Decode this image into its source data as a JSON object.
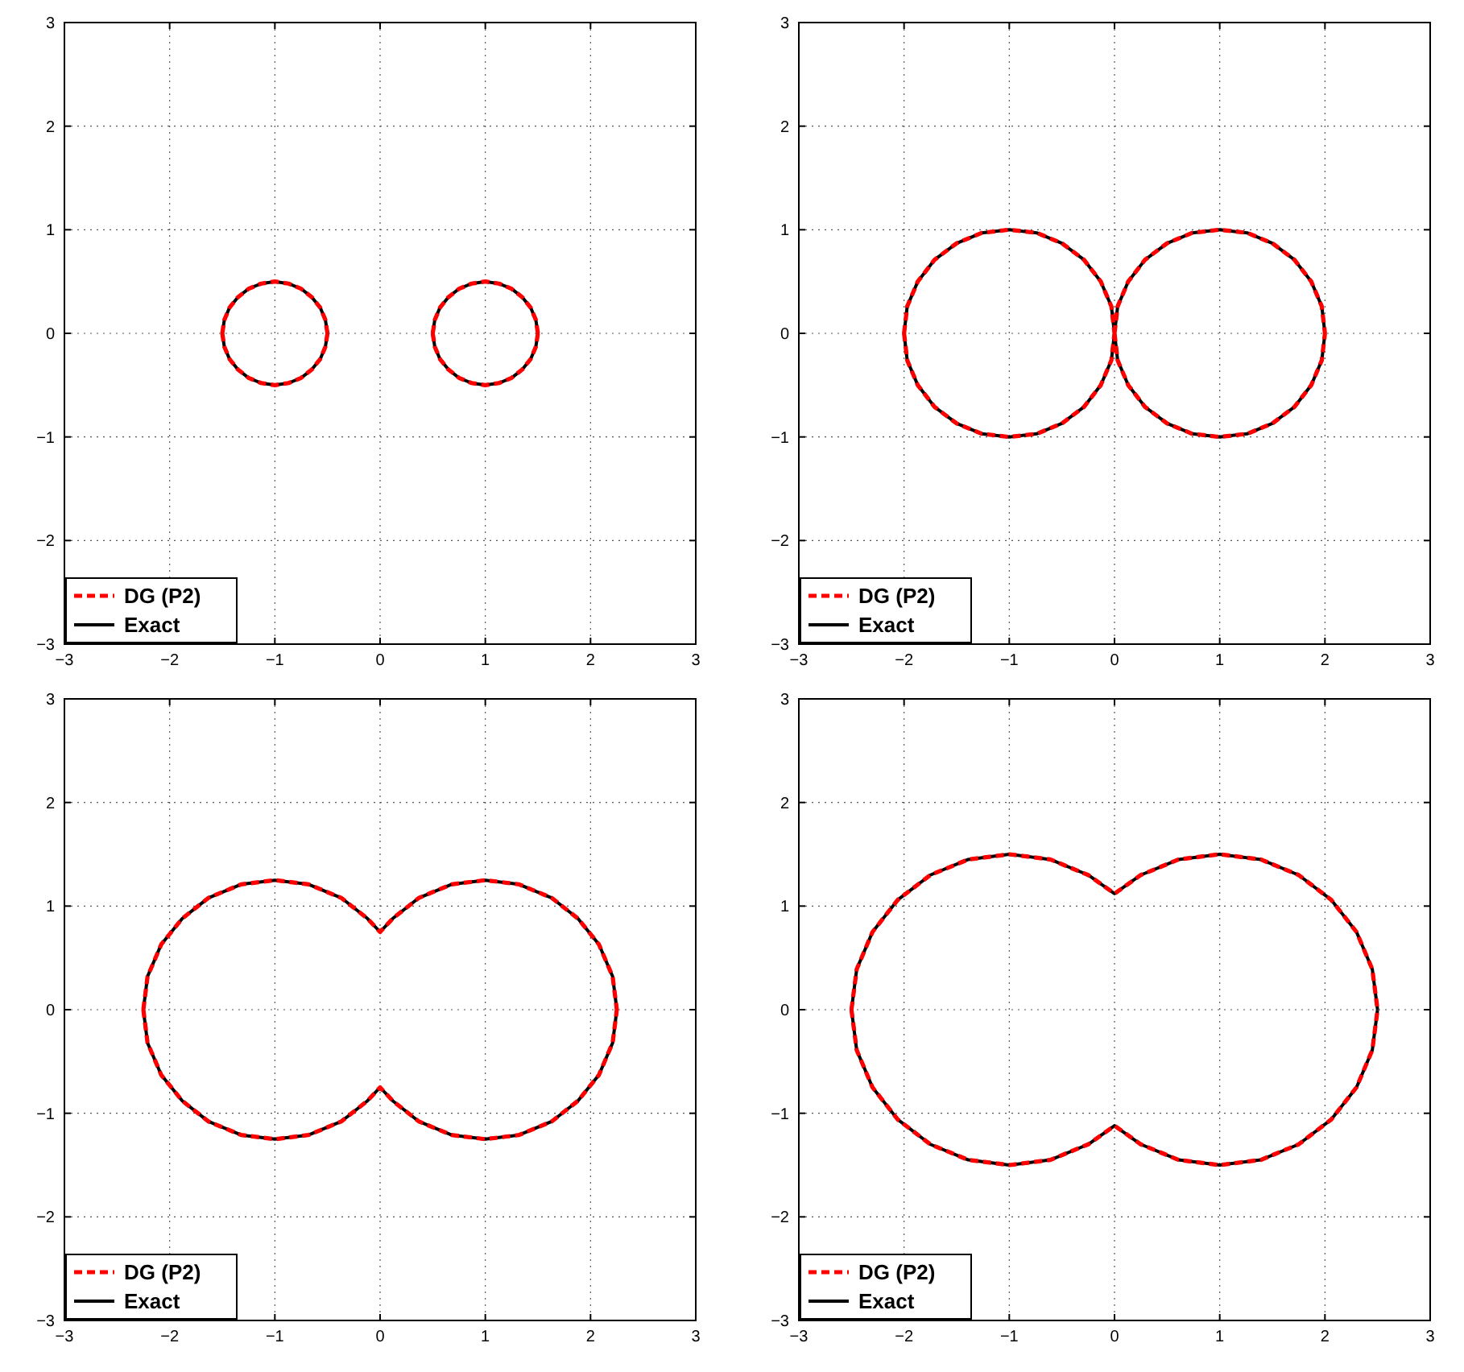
{
  "chart_data": [
    {
      "type": "line",
      "x": [
        -1.5,
        -1.48,
        -1.43,
        -1.35,
        -1.25,
        -1.13,
        -1,
        -0.87,
        -0.75,
        -0.65,
        -0.57,
        -0.52,
        -0.5,
        null,
        -1.5,
        -1.48,
        -1.43,
        -1.35,
        -1.25,
        -1.13,
        -1,
        -0.87,
        -0.75,
        -0.65,
        -0.57,
        -0.52,
        -0.5,
        null,
        0.5,
        0.52,
        0.57,
        0.65,
        0.75,
        0.87,
        1,
        1.13,
        1.25,
        1.35,
        1.43,
        1.48,
        1.5,
        null,
        0.5,
        0.52,
        0.57,
        0.65,
        0.75,
        0.87,
        1,
        1.13,
        1.25,
        1.35,
        1.43,
        1.48,
        1.5
      ],
      "series": [
        {
          "name": "DG (P2)",
          "color": "#ff0000",
          "line_style": "dashed",
          "values": [
            0,
            0.13,
            0.25,
            0.35,
            0.43,
            0.48,
            0.5,
            0.48,
            0.43,
            0.35,
            0.25,
            0.13,
            0,
            null,
            0,
            -0.13,
            -0.25,
            -0.35,
            -0.43,
            -0.48,
            -0.5,
            -0.48,
            -0.43,
            -0.35,
            -0.25,
            -0.13,
            0,
            null,
            0,
            0.13,
            0.25,
            0.35,
            0.43,
            0.48,
            0.5,
            0.48,
            0.43,
            0.35,
            0.25,
            0.13,
            0,
            null,
            0,
            -0.13,
            -0.25,
            -0.35,
            -0.43,
            -0.48,
            -0.5,
            -0.48,
            -0.43,
            -0.35,
            -0.25,
            -0.13,
            0
          ]
        },
        {
          "name": "Exact",
          "color": "#000000",
          "line_style": "solid",
          "values": [
            0,
            0.13,
            0.25,
            0.35,
            0.43,
            0.48,
            0.5,
            0.48,
            0.43,
            0.35,
            0.25,
            0.13,
            0,
            null,
            0,
            -0.13,
            -0.25,
            -0.35,
            -0.43,
            -0.48,
            -0.5,
            -0.48,
            -0.43,
            -0.35,
            -0.25,
            -0.13,
            0,
            null,
            0,
            0.13,
            0.25,
            0.35,
            0.43,
            0.48,
            0.5,
            0.48,
            0.43,
            0.35,
            0.25,
            0.13,
            0,
            null,
            0,
            -0.13,
            -0.25,
            -0.35,
            -0.43,
            -0.48,
            -0.5,
            -0.48,
            -0.43,
            -0.35,
            -0.25,
            -0.13,
            0
          ]
        }
      ],
      "xlim": [
        -3,
        3
      ],
      "ylim": [
        -3,
        3
      ],
      "xticks": [
        {
          "value": -3,
          "label": "−3"
        },
        {
          "value": -2,
          "label": "−2"
        },
        {
          "value": -1,
          "label": "−1"
        },
        0,
        1,
        2,
        3
      ],
      "yticks": [
        {
          "value": -3,
          "label": "−3"
        },
        {
          "value": -2,
          "label": "−2"
        },
        {
          "value": -1,
          "label": "−1"
        },
        0,
        1,
        2,
        3
      ],
      "grid": true,
      "legend": "bottom left"
    },
    {
      "type": "line",
      "x": [
        -2,
        -1.97,
        -1.87,
        -1.71,
        -1.5,
        -1.26,
        -1,
        -0.74,
        -0.5,
        -0.29,
        -0.13,
        -0.03,
        0,
        null,
        -2,
        -1.97,
        -1.87,
        -1.71,
        -1.5,
        -1.26,
        -1,
        -0.74,
        -0.5,
        -0.29,
        -0.13,
        -0.03,
        0,
        null,
        0,
        0.03,
        0.13,
        0.29,
        0.5,
        0.74,
        1,
        1.26,
        1.5,
        1.71,
        1.87,
        1.97,
        2,
        null,
        0,
        0.03,
        0.13,
        0.29,
        0.5,
        0.74,
        1,
        1.26,
        1.5,
        1.71,
        1.87,
        1.97,
        2
      ],
      "series": [
        {
          "name": "DG (P2)",
          "color": "#ff0000",
          "line_style": "dashed",
          "values": [
            0,
            0.26,
            0.5,
            0.71,
            0.87,
            0.97,
            1,
            0.97,
            0.87,
            0.71,
            0.5,
            0.26,
            0,
            null,
            0,
            -0.26,
            -0.5,
            -0.71,
            -0.87,
            -0.97,
            -1,
            -0.97,
            -0.87,
            -0.71,
            -0.5,
            -0.26,
            0,
            null,
            0,
            0.26,
            0.5,
            0.71,
            0.87,
            0.97,
            1,
            0.97,
            0.87,
            0.71,
            0.5,
            0.26,
            0,
            null,
            0,
            -0.26,
            -0.5,
            -0.71,
            -0.87,
            -0.97,
            -1,
            -0.97,
            -0.87,
            -0.71,
            -0.5,
            -0.26,
            0
          ]
        },
        {
          "name": "Exact",
          "color": "#000000",
          "line_style": "solid",
          "values": [
            0,
            0.26,
            0.5,
            0.71,
            0.87,
            0.97,
            1,
            0.97,
            0.87,
            0.71,
            0.5,
            0.26,
            0,
            null,
            0,
            -0.26,
            -0.5,
            -0.71,
            -0.87,
            -0.97,
            -1,
            -0.97,
            -0.87,
            -0.71,
            -0.5,
            -0.26,
            0,
            null,
            0,
            0.26,
            0.5,
            0.71,
            0.87,
            0.97,
            1,
            0.97,
            0.87,
            0.71,
            0.5,
            0.26,
            0,
            null,
            0,
            -0.26,
            -0.5,
            -0.71,
            -0.87,
            -0.97,
            -1,
            -0.97,
            -0.87,
            -0.71,
            -0.5,
            -0.26,
            0
          ]
        }
      ],
      "xlim": [
        -3,
        3
      ],
      "ylim": [
        -3,
        3
      ],
      "xticks": [
        {
          "value": -3,
          "label": "−3"
        },
        {
          "value": -2,
          "label": "−2"
        },
        {
          "value": -1,
          "label": "−1"
        },
        0,
        1,
        2,
        3
      ],
      "yticks": [
        {
          "value": -3,
          "label": "−3"
        },
        {
          "value": -2,
          "label": "−2"
        },
        {
          "value": -1,
          "label": "−1"
        },
        0,
        1,
        2,
        3
      ],
      "grid": true,
      "legend": "bottom left"
    },
    {
      "type": "line",
      "x": [
        -2.25,
        -2.21,
        -2.08,
        -1.88,
        -1.63,
        -1.32,
        -1,
        -0.68,
        -0.37,
        -0.12,
        0,
        0.12,
        0.37,
        0.68,
        1,
        1.32,
        1.63,
        1.88,
        2.08,
        2.21,
        2.25,
        null,
        -2.25,
        -2.21,
        -2.08,
        -1.88,
        -1.63,
        -1.32,
        -1,
        -0.68,
        -0.37,
        -0.12,
        0,
        0.12,
        0.37,
        0.68,
        1,
        1.32,
        1.63,
        1.88,
        2.08,
        2.21,
        2.25
      ],
      "series": [
        {
          "name": "DG (P2)",
          "color": "#ff0000",
          "line_style": "dashed",
          "values": [
            0,
            0.32,
            0.63,
            0.88,
            1.08,
            1.21,
            1.25,
            1.21,
            1.08,
            0.88,
            0.75,
            0.88,
            1.08,
            1.21,
            1.25,
            1.21,
            1.08,
            0.88,
            0.63,
            0.32,
            0,
            null,
            0,
            -0.32,
            -0.63,
            -0.88,
            -1.08,
            -1.21,
            -1.25,
            -1.21,
            -1.08,
            -0.88,
            -0.75,
            -0.88,
            -1.08,
            -1.21,
            -1.25,
            -1.21,
            -1.08,
            -0.88,
            -0.63,
            -0.32,
            0
          ]
        },
        {
          "name": "Exact",
          "color": "#000000",
          "line_style": "solid",
          "values": [
            0,
            0.32,
            0.63,
            0.88,
            1.08,
            1.21,
            1.25,
            1.21,
            1.08,
            0.88,
            0.75,
            0.88,
            1.08,
            1.21,
            1.25,
            1.21,
            1.08,
            0.88,
            0.63,
            0.32,
            0,
            null,
            0,
            -0.32,
            -0.63,
            -0.88,
            -1.08,
            -1.21,
            -1.25,
            -1.21,
            -1.08,
            -0.88,
            -0.75,
            -0.88,
            -1.08,
            -1.21,
            -1.25,
            -1.21,
            -1.08,
            -0.88,
            -0.63,
            -0.32,
            0
          ]
        }
      ],
      "xlim": [
        -3,
        3
      ],
      "ylim": [
        -3,
        3
      ],
      "xticks": [
        {
          "value": -3,
          "label": "−3"
        },
        {
          "value": -2,
          "label": "−2"
        },
        {
          "value": -1,
          "label": "−1"
        },
        0,
        1,
        2,
        3
      ],
      "yticks": [
        {
          "value": -3,
          "label": "−3"
        },
        {
          "value": -2,
          "label": "−2"
        },
        {
          "value": -1,
          "label": "−1"
        },
        0,
        1,
        2,
        3
      ],
      "grid": true,
      "legend": "bottom left"
    },
    {
      "type": "line",
      "x": [
        -2.5,
        -2.45,
        -2.3,
        -2.06,
        -1.75,
        -1.39,
        -1,
        -0.61,
        -0.25,
        0,
        0.25,
        0.61,
        1,
        1.39,
        1.75,
        2.06,
        2.3,
        2.45,
        2.5,
        null,
        -2.5,
        -2.45,
        -2.3,
        -2.06,
        -1.75,
        -1.39,
        -1,
        -0.61,
        -0.25,
        0,
        0.25,
        0.61,
        1,
        1.39,
        1.75,
        2.06,
        2.3,
        2.45,
        2.5
      ],
      "series": [
        {
          "name": "DG (P2)",
          "color": "#ff0000",
          "line_style": "dashed",
          "values": [
            0,
            0.39,
            0.75,
            1.06,
            1.3,
            1.45,
            1.5,
            1.45,
            1.3,
            1.12,
            1.3,
            1.45,
            1.5,
            1.45,
            1.3,
            1.06,
            0.75,
            0.39,
            0,
            null,
            0,
            -0.39,
            -0.75,
            -1.06,
            -1.3,
            -1.45,
            -1.5,
            -1.45,
            -1.3,
            -1.12,
            -1.3,
            -1.45,
            -1.5,
            -1.45,
            -1.3,
            -1.06,
            -0.75,
            -0.39,
            0
          ]
        },
        {
          "name": "Exact",
          "color": "#000000",
          "line_style": "solid",
          "values": [
            0,
            0.39,
            0.75,
            1.06,
            1.3,
            1.45,
            1.5,
            1.45,
            1.3,
            1.12,
            1.3,
            1.45,
            1.5,
            1.45,
            1.3,
            1.06,
            0.75,
            0.39,
            0,
            null,
            0,
            -0.39,
            -0.75,
            -1.06,
            -1.3,
            -1.45,
            -1.5,
            -1.45,
            -1.3,
            -1.12,
            -1.3,
            -1.45,
            -1.5,
            -1.45,
            -1.3,
            -1.06,
            -0.75,
            -0.39,
            0
          ]
        }
      ],
      "xlim": [
        -3,
        3
      ],
      "ylim": [
        -3,
        3
      ],
      "xticks": [
        {
          "value": -3,
          "label": "−3"
        },
        {
          "value": -2,
          "label": "−2"
        },
        {
          "value": -1,
          "label": "−1"
        },
        0,
        1,
        2,
        3
      ],
      "yticks": [
        {
          "value": -3,
          "label": "−3"
        },
        {
          "value": -2,
          "label": "−2"
        },
        {
          "value": -1,
          "label": "−1"
        },
        0,
        1,
        2,
        3
      ],
      "grid": true,
      "legend": "bottom left"
    }
  ]
}
